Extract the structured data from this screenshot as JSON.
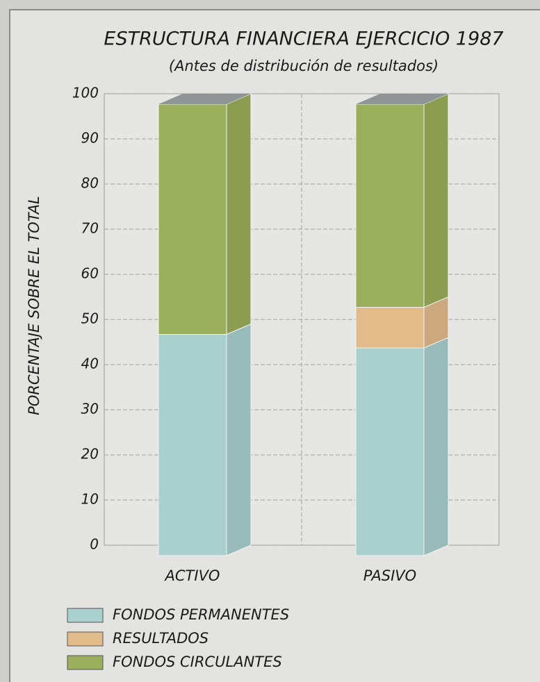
{
  "chart_data": {
    "type": "stacked_bar_3d",
    "title": "ESTRUCTURA FINANCIERA EJERCICIO 1987",
    "subtitle": "(Antes de distribución de resultados)",
    "y_label": "PORCENTAJE SOBRE EL TOTAL",
    "categories": [
      "ACTIVO",
      "PASIVO"
    ],
    "series": [
      {
        "name": "FONDOS PERMANENTES",
        "color": "#a9d0cd",
        "values": [
          49,
          46
        ]
      },
      {
        "name": "RESULTADOS",
        "color": "#e2bb8b",
        "values": [
          0,
          9
        ]
      },
      {
        "name": "FONDOS CIRCULANTES",
        "color": "#9bae5b",
        "values": [
          51,
          45
        ]
      }
    ],
    "ylim": [
      0,
      100
    ],
    "yticks": [
      0,
      10,
      20,
      30,
      40,
      50,
      60,
      70,
      80,
      90,
      100
    ],
    "grid": true
  }
}
